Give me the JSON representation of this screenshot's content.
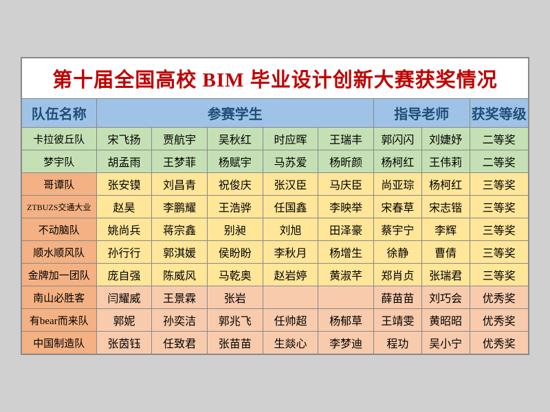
{
  "title": "第十届全国高校 BIM 毕业设计创新大赛获奖情况",
  "headers": {
    "team": "队伍名称",
    "students": "参赛学生",
    "teachers": "指导老师",
    "award": "获奖等级"
  },
  "colors": {
    "header_bg": "#9ec3e6",
    "header_fg": "#1f4e79",
    "title_fg": "#c00000",
    "green": "#c5e0b4",
    "yellow": "#ffe699",
    "orange_team": "#f4b183",
    "orange_cell": "#f8cbad",
    "border": "#888888"
  },
  "rows": [
    {
      "team": "卡拉彼丘队",
      "students": [
        "宋飞扬",
        "贾航宇",
        "吴秋红",
        "时应晖",
        "王瑞丰"
      ],
      "teachers": [
        "郭闪闪",
        "刘婕妤"
      ],
      "award": "二等奖",
      "color": "green"
    },
    {
      "team": "梦宇队",
      "students": [
        "胡孟雨",
        "王梦菲",
        "杨赋宇",
        "马苏爱",
        "杨昕颜"
      ],
      "teachers": [
        "杨柯红",
        "王伟莉"
      ],
      "award": "二等奖",
      "color": "green"
    },
    {
      "team": "哥谭队",
      "students": [
        "张安镆",
        "刘昌青",
        "祝俊庆",
        "张汉臣",
        "马庆臣"
      ],
      "teachers": [
        "尚亚琮",
        "杨柯红"
      ],
      "award": "三等奖",
      "color": "yellow"
    },
    {
      "team": "ZTBUZS交通大业",
      "students": [
        "赵昊",
        "李鹏耀",
        "王浩骅",
        "任国鑫",
        "李映举"
      ],
      "teachers": [
        "宋春草",
        "宋志锴"
      ],
      "award": "三等奖",
      "color": "yellow",
      "small": true
    },
    {
      "team": "不动脑队",
      "students": [
        "姚尚兵",
        "蒋宗鑫",
        "别昶",
        "刘旭",
        "田泽豪"
      ],
      "teachers": [
        "蔡宇宁",
        "李辉"
      ],
      "award": "三等奖",
      "color": "yellow"
    },
    {
      "team": "顺水顺风队",
      "students": [
        "孙行行",
        "郭淇媛",
        "侯盼盼",
        "李秋月",
        "杨增生"
      ],
      "teachers": [
        "徐静",
        "曹倩"
      ],
      "award": "三等奖",
      "color": "yellow"
    },
    {
      "team": "金牌加一团队",
      "students": [
        "庞自强",
        "陈威风",
        "马乾奥",
        "赵岩婷",
        "黄淑芊"
      ],
      "teachers": [
        "郑肖贞",
        "张瑞君"
      ],
      "award": "三等奖",
      "color": "yellow"
    },
    {
      "team": "南山必胜客",
      "students": [
        "闫耀威",
        "王景霖",
        "张岩",
        "",
        ""
      ],
      "teachers": [
        "薛苗苗",
        "刘巧会"
      ],
      "award": "优秀奖",
      "color": "orange"
    },
    {
      "team": "有bear而来队",
      "students": [
        "郭妮",
        "孙奕洁",
        "郭兆飞",
        "任帅超",
        "杨郁草"
      ],
      "teachers": [
        "王靖雯",
        "黄昭昭"
      ],
      "award": "优秀奖",
      "color": "orange"
    },
    {
      "team": "中国制造队",
      "students": [
        "张茵钰",
        "任致君",
        "张苗苗",
        "生燚心",
        "李梦迪"
      ],
      "teachers": [
        "程功",
        "吴小宁"
      ],
      "award": "优秀奖",
      "color": "orange"
    }
  ]
}
